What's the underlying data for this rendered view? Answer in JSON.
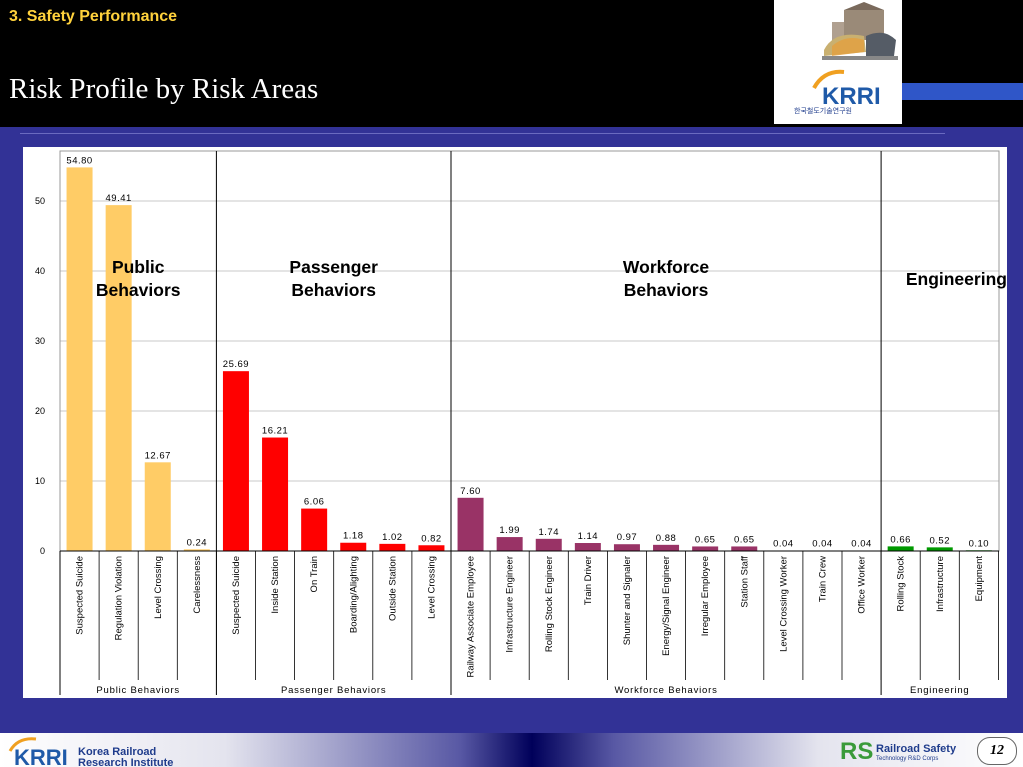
{
  "header": {
    "section": "3. Safety Performance",
    "title": "Risk Profile by Risk Areas",
    "logo_text": "한국철도기술연구원"
  },
  "colors": {
    "public": "#ffcc66",
    "passenger": "#ff0000",
    "workforce": "#993366",
    "engineering": "#009900"
  },
  "chart_data": {
    "type": "bar",
    "ylim": [
      0,
      55
    ],
    "yticks": [
      0,
      10,
      20,
      30,
      40,
      50
    ],
    "grid": true,
    "groups": [
      {
        "name": "Public Behaviors",
        "annotation": [
          "Public",
          "Behaviors"
        ],
        "color_key": "public",
        "categories": [
          "Suspected Suicide",
          "Regulation Violation",
          "Level Crossing",
          "Carelessness"
        ],
        "values": [
          54.8,
          49.41,
          12.67,
          0.24
        ],
        "labels": [
          "54.80",
          "49.41",
          "12.67",
          "0.24"
        ]
      },
      {
        "name": "Passenger Behaviors",
        "annotation": [
          "Passenger",
          "Behaviors"
        ],
        "color_key": "passenger",
        "categories": [
          "Suspected Suicide",
          "Inside Station",
          "On Train",
          "Boarding/Alighting",
          "Outside Station",
          "Level Crossing"
        ],
        "values": [
          25.69,
          16.21,
          6.06,
          1.18,
          1.02,
          0.82
        ],
        "labels": [
          "25.69",
          "16.21",
          "6.06",
          "1.18",
          "1.02",
          "0.82"
        ]
      },
      {
        "name": "Workforce Behaviors",
        "annotation": [
          "Workforce",
          "Behaviors"
        ],
        "color_key": "workforce",
        "categories": [
          "Railway Associate Employee",
          "Infrastructure Engineer",
          "Rolling Stock Engineer",
          "Train Driver",
          "Shunter and Signaler",
          "Energy/Signal Engineer",
          "Irregular Employee",
          "Station Staff",
          "Level Crossing Worker",
          "Train Crew",
          "Office Worker"
        ],
        "values": [
          7.6,
          1.99,
          1.74,
          1.14,
          0.97,
          0.88,
          0.65,
          0.65,
          0.04,
          0.04,
          0.04
        ],
        "labels": [
          "7.60",
          "1.99",
          "1.74",
          "1.14",
          "0.97",
          "0.88",
          "0.65",
          "0.65",
          "0.04",
          "0.04",
          "0.04"
        ]
      },
      {
        "name": "Engineering",
        "annotation": [
          "Engineering"
        ],
        "color_key": "engineering",
        "categories": [
          "Rolling Stock",
          "Infrastructure",
          "Equipment"
        ],
        "values": [
          0.66,
          0.52,
          0.1
        ],
        "labels": [
          "0.66",
          "0.52",
          "0.10"
        ]
      }
    ]
  },
  "footer": {
    "org_line1": "Korea Railroad",
    "org_line2": "Research Institute",
    "rs_name": "Railroad  Safety",
    "rs_sub": "Technology R&D Corps",
    "page_number": "12"
  }
}
